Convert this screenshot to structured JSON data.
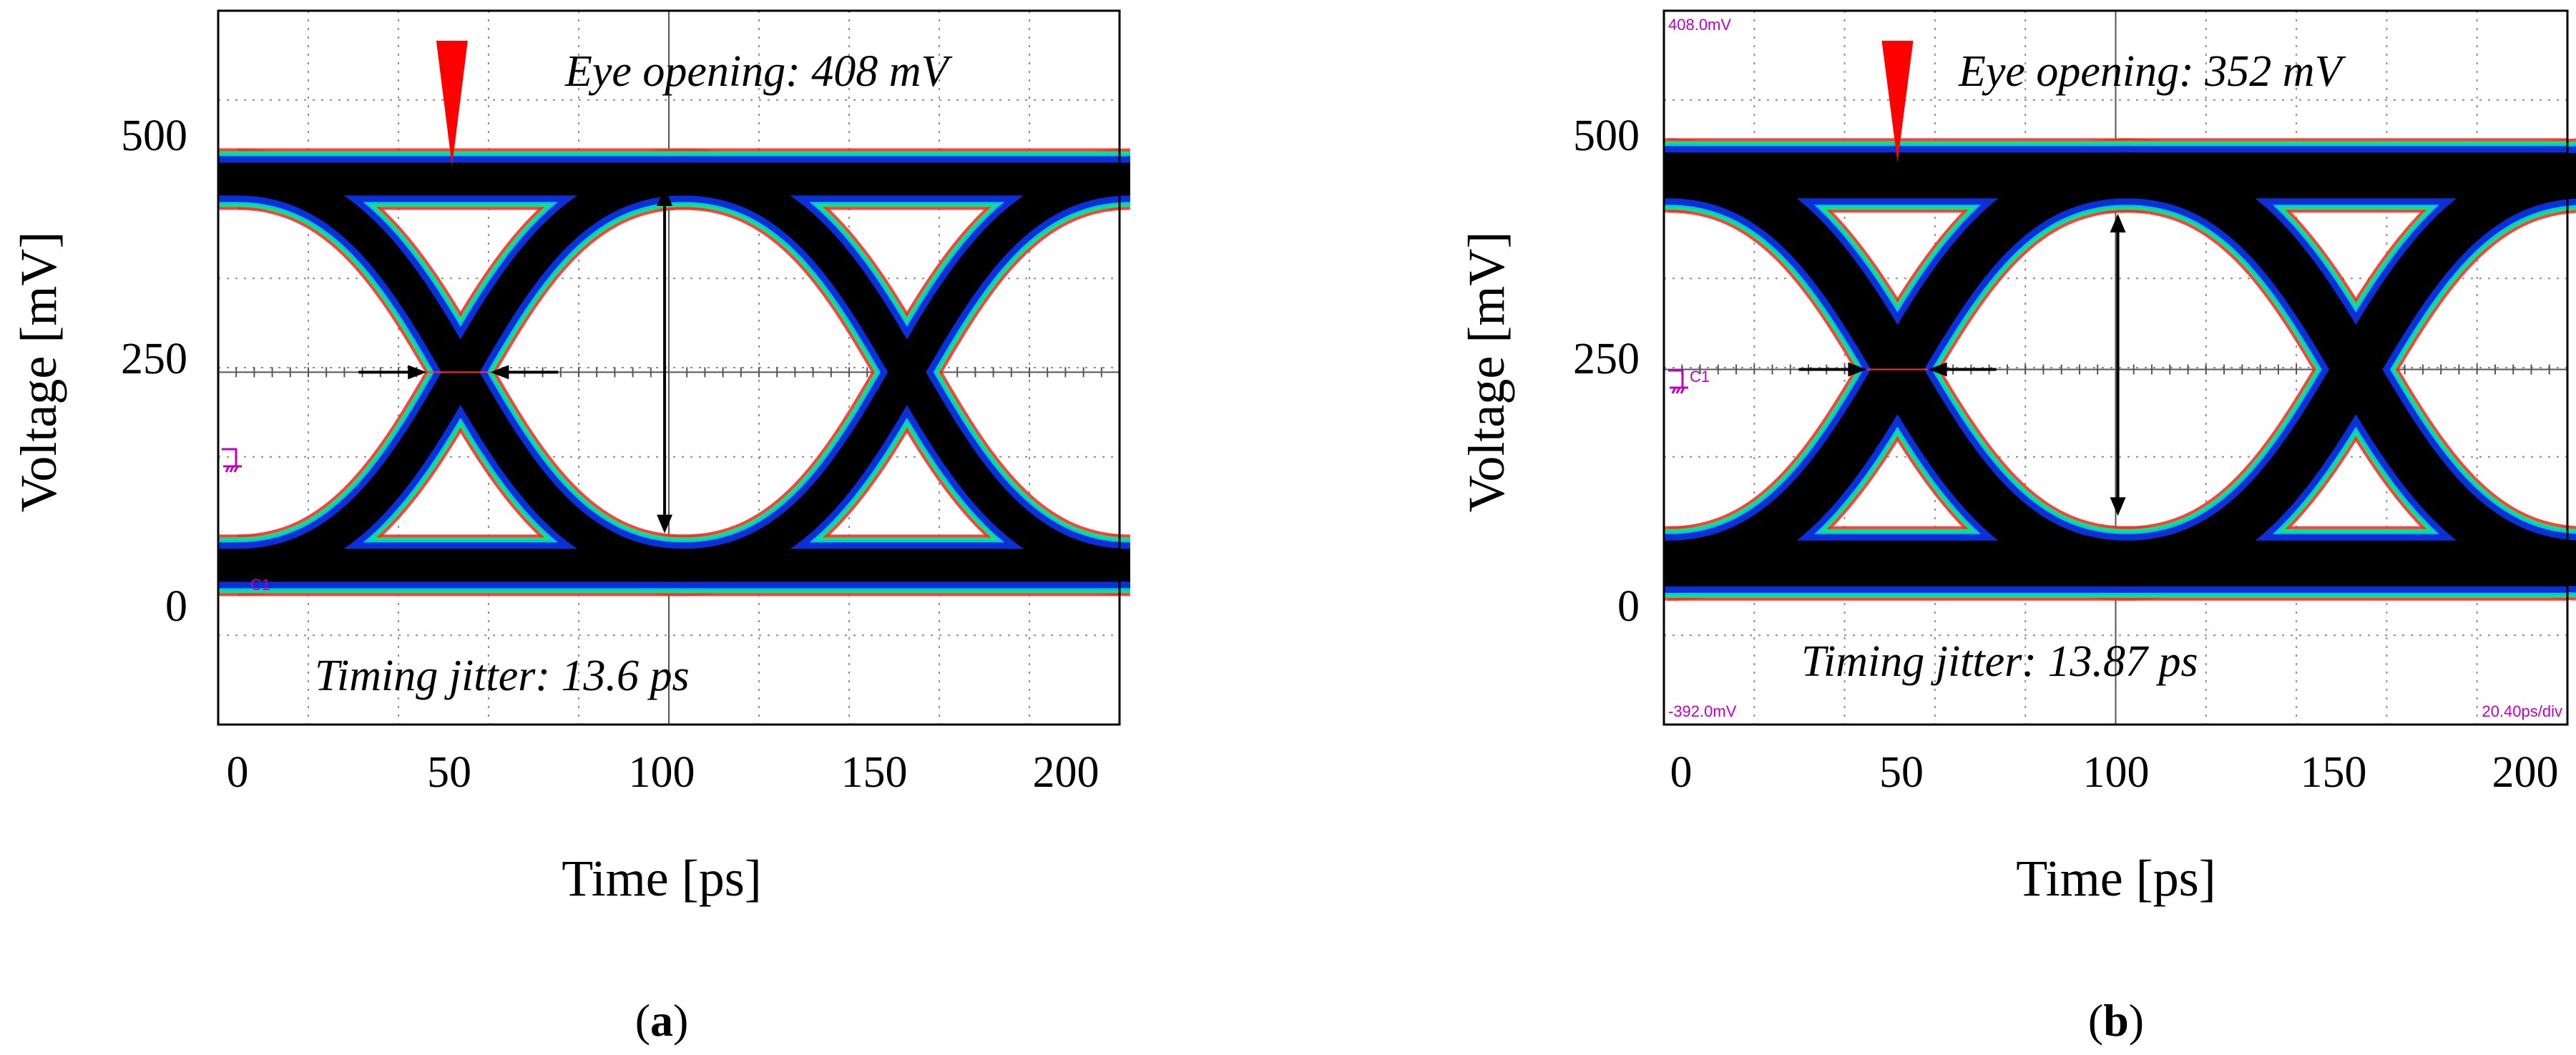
{
  "chart_data": [
    {
      "type": "eye-diagram",
      "panel_label": "a",
      "xlabel": "Time [ps]",
      "ylabel": "Voltage [mV]",
      "xlim": [
        -5,
        207
      ],
      "ylim": [
        -140,
        640
      ],
      "xticks": [
        0,
        50,
        100,
        150,
        200
      ],
      "yticks": [
        0,
        250,
        500
      ],
      "xtick_labels": [
        "0",
        "50",
        "100",
        "150",
        "200"
      ],
      "ytick_labels": [
        "0",
        "250",
        "500"
      ],
      "grid": true,
      "levels": {
        "high_mv": 456,
        "low_mv": 34,
        "crossing_mv": 245
      },
      "crossings_ps": [
        52,
        157
      ],
      "eye_inner": {
        "top_mv": 437,
        "bottom_mv": 60
      },
      "eye_opening_marker": {
        "x_ps": 100,
        "from_mv": 69,
        "to_mv": 447
      },
      "jitter_marker": {
        "y_mv": 245,
        "from_ps": 44,
        "to_ps": 59
      },
      "trigger_marker_ps": 50,
      "annotations": [
        {
          "label": "Eye opening",
          "value": 408,
          "unit": "mV",
          "text": "Eye opening: 408 mV"
        },
        {
          "label": "Timing jitter",
          "value": 13.6,
          "unit": "ps",
          "text": "Timing jitter: 13.6 ps"
        }
      ],
      "scope_labels": {
        "channel": "C1"
      }
    },
    {
      "type": "eye-diagram",
      "panel_label": "b",
      "xlabel": "Time [ps]",
      "ylabel": "Voltage [mV]",
      "xlim": [
        -3,
        202
      ],
      "ylim": [
        -140,
        640
      ],
      "xticks": [
        0,
        50,
        100,
        150,
        200
      ],
      "yticks": [
        0,
        250,
        500
      ],
      "xtick_labels": [
        "0",
        "50",
        "100",
        "150",
        "200"
      ],
      "ytick_labels": [
        "0",
        "250",
        "500"
      ],
      "grid": true,
      "levels": {
        "high_mv": 460,
        "low_mv": 36,
        "crossing_mv": 248
      },
      "crossings_ps": [
        50,
        154
      ],
      "eye_inner": {
        "top_mv": 424,
        "bottom_mv": 72
      },
      "eye_opening_marker": {
        "x_ps": 100,
        "from_mv": 88,
        "to_mv": 418
      },
      "jitter_marker": {
        "y_mv": 248,
        "from_ps": 43,
        "to_ps": 57
      },
      "trigger_marker_ps": 50,
      "annotations": [
        {
          "label": "Eye opening",
          "value": 352,
          "unit": "mV",
          "text": "Eye opening: 352 mV"
        },
        {
          "label": "Timing jitter",
          "value": 13.87,
          "unit": "ps",
          "text": "Timing jitter: 13.87 ps"
        }
      ],
      "scope_labels": {
        "channel": "C1",
        "top_left": "408.0mV",
        "bottom_left": "-392.0mV",
        "bottom_right": "20.40ps/div"
      }
    }
  ],
  "captions": [
    {
      "open": "(",
      "letter": "a",
      "close": ")"
    },
    {
      "open": "(",
      "letter": "b",
      "close": ")"
    }
  ],
  "colors": {
    "axis": "#000000",
    "grid": "#8c8c8c",
    "trace_core": "#000000",
    "trace_blue": "#0b2fd8",
    "halo_green": "#16e07a",
    "halo_cyan": "#00c8e0",
    "halo_red": "#ff2a2a",
    "scope_text": "#c000c0",
    "trigger": "#ff0000"
  }
}
